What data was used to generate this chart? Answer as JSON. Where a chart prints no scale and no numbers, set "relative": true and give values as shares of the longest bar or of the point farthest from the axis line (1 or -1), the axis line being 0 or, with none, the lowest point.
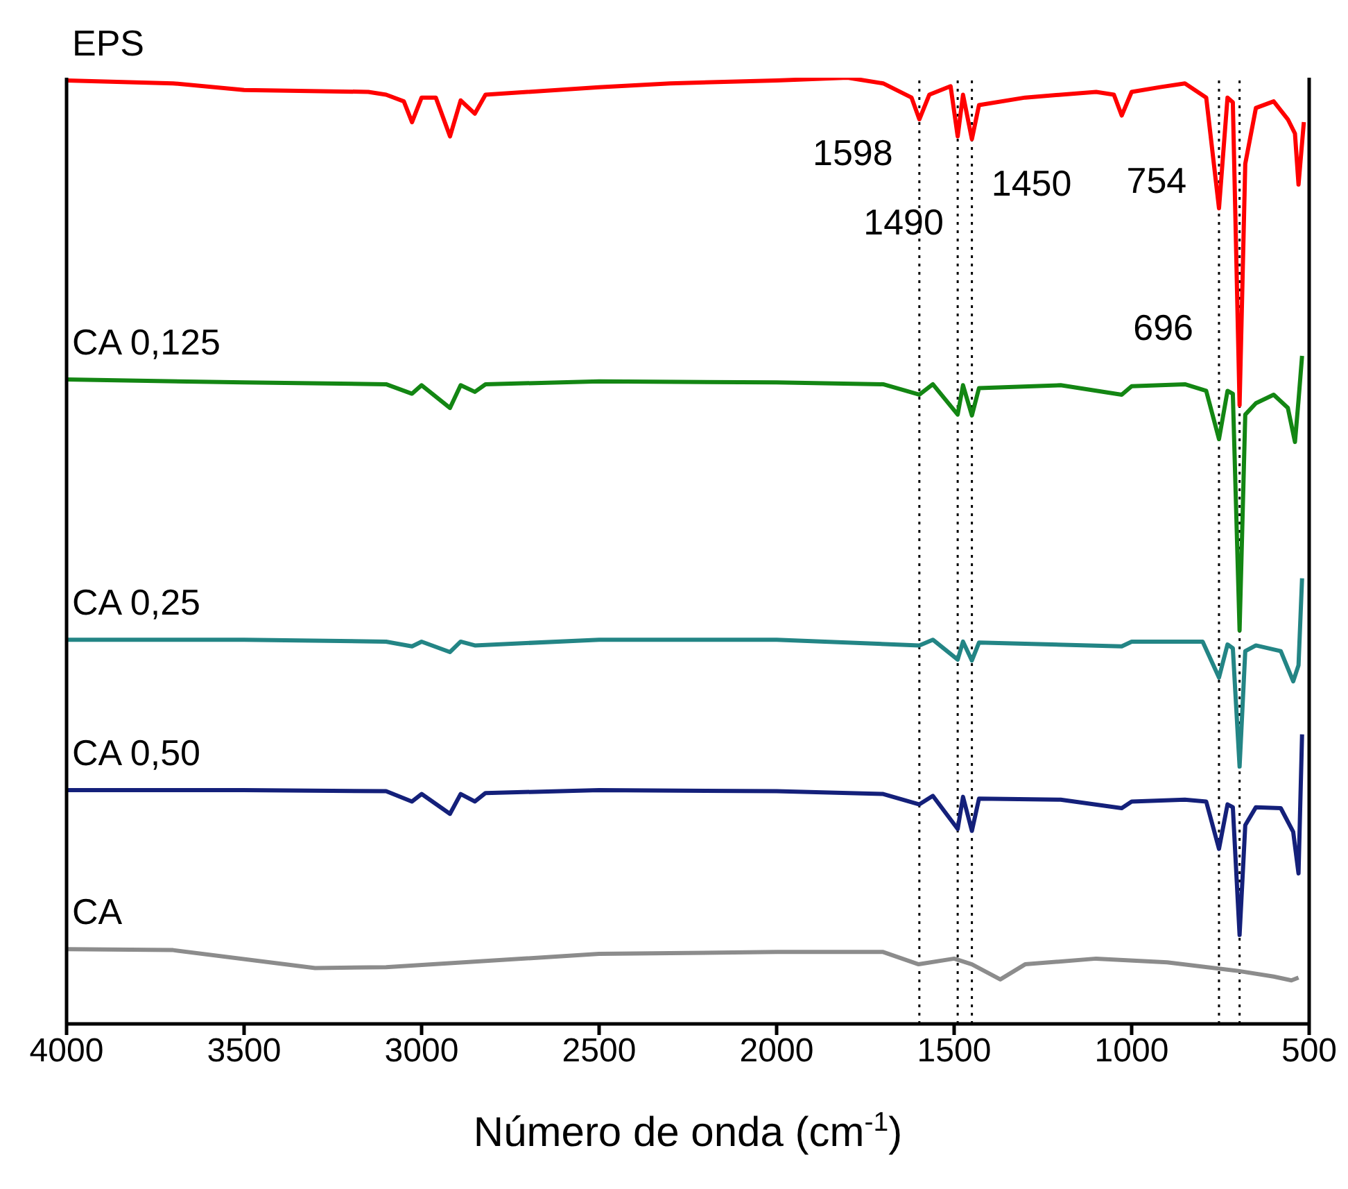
{
  "chart_data": {
    "type": "line",
    "relative": true,
    "xlabel": "Número de onda (cm$^{-1}$)",
    "xlim": [
      4000,
      500
    ],
    "xticks": [
      4000,
      3500,
      3000,
      2500,
      2000,
      1500,
      1000,
      500
    ],
    "series": [
      {
        "name": "EPS",
        "color": "#ff0000",
        "x": [
          4000,
          3700,
          3500,
          3150,
          3100,
          3050,
          3027,
          3000,
          2960,
          2920,
          2890,
          2850,
          2820,
          2500,
          2300,
          2000,
          1800,
          1700,
          1620,
          1598,
          1570,
          1510,
          1490,
          1475,
          1450,
          1430,
          1300,
          1100,
          1050,
          1028,
          1000,
          920,
          850,
          790,
          754,
          730,
          715,
          696,
          680,
          650,
          600,
          560,
          540,
          530,
          515
        ],
        "values": [
          0.997,
          0.994,
          0.987,
          0.985,
          0.982,
          0.975,
          0.953,
          0.979,
          0.979,
          0.938,
          0.976,
          0.962,
          0.982,
          0.99,
          0.994,
          0.997,
          1.0,
          0.994,
          0.979,
          0.956,
          0.982,
          0.991,
          0.938,
          0.982,
          0.935,
          0.971,
          0.979,
          0.985,
          0.982,
          0.96,
          0.985,
          0.99,
          0.994,
          0.979,
          0.862,
          0.979,
          0.974,
          0.654,
          0.909,
          0.968,
          0.975,
          0.956,
          0.941,
          0.887,
          0.953
        ]
      },
      {
        "name": "CA 0,125",
        "color": "#138613",
        "x": [
          4000,
          3500,
          3100,
          3027,
          3000,
          2920,
          2890,
          2850,
          2820,
          2500,
          2000,
          1700,
          1598,
          1560,
          1490,
          1475,
          1450,
          1430,
          1200,
          1028,
          1000,
          850,
          790,
          754,
          730,
          715,
          696,
          680,
          650,
          600,
          560,
          540,
          530,
          520
        ],
        "values": [
          0.681,
          0.678,
          0.676,
          0.666,
          0.675,
          0.651,
          0.675,
          0.668,
          0.676,
          0.679,
          0.678,
          0.676,
          0.665,
          0.676,
          0.644,
          0.675,
          0.643,
          0.672,
          0.675,
          0.665,
          0.674,
          0.676,
          0.669,
          0.618,
          0.669,
          0.666,
          0.416,
          0.644,
          0.656,
          0.665,
          0.651,
          0.615,
          0.659,
          0.706
        ]
      },
      {
        "name": "CA 0,25",
        "color": "#238585",
        "x": [
          4000,
          3500,
          3100,
          3027,
          3000,
          2920,
          2890,
          2850,
          2500,
          2000,
          1598,
          1560,
          1490,
          1475,
          1450,
          1430,
          1028,
          1000,
          800,
          754,
          730,
          715,
          696,
          680,
          650,
          580,
          545,
          530,
          520
        ],
        "values": [
          0.406,
          0.406,
          0.404,
          0.399,
          0.404,
          0.393,
          0.404,
          0.4,
          0.406,
          0.406,
          0.4,
          0.406,
          0.385,
          0.404,
          0.384,
          0.403,
          0.399,
          0.404,
          0.404,
          0.366,
          0.401,
          0.397,
          0.272,
          0.394,
          0.4,
          0.394,
          0.362,
          0.379,
          0.471
        ]
      },
      {
        "name": "CA 0,50",
        "color": "#14207a",
        "x": [
          4000,
          3500,
          3100,
          3027,
          3000,
          2920,
          2890,
          2850,
          2820,
          2500,
          2000,
          1700,
          1598,
          1560,
          1490,
          1475,
          1450,
          1430,
          1200,
          1028,
          1000,
          850,
          790,
          754,
          730,
          715,
          696,
          680,
          650,
          580,
          545,
          530,
          520
        ],
        "values": [
          0.247,
          0.247,
          0.246,
          0.235,
          0.243,
          0.222,
          0.243,
          0.235,
          0.244,
          0.247,
          0.246,
          0.243,
          0.232,
          0.241,
          0.206,
          0.24,
          0.204,
          0.238,
          0.237,
          0.228,
          0.235,
          0.237,
          0.235,
          0.185,
          0.232,
          0.229,
          0.094,
          0.21,
          0.229,
          0.228,
          0.203,
          0.159,
          0.306
        ]
      },
      {
        "name": "CA",
        "color": "#8c8c8c",
        "x": [
          4000,
          3700,
          3300,
          3100,
          2500,
          2000,
          1700,
          1600,
          1500,
          1450,
          1370,
          1300,
          1100,
          900,
          700,
          600,
          550,
          530
        ],
        "values": [
          0.079,
          0.078,
          0.059,
          0.06,
          0.074,
          0.076,
          0.076,
          0.063,
          0.069,
          0.063,
          0.047,
          0.063,
          0.069,
          0.065,
          0.056,
          0.05,
          0.046,
          0.049
        ]
      }
    ],
    "ref_lines": [
      {
        "axis": "x",
        "value": 1598,
        "label": "1598",
        "line_style": "dotted"
      },
      {
        "axis": "x",
        "value": 1490,
        "label": "1490",
        "line_style": "dotted"
      },
      {
        "axis": "x",
        "value": 1450,
        "label": "1450",
        "line_style": "dotted"
      },
      {
        "axis": "x",
        "value": 754,
        "label": "754",
        "line_style": "dotted"
      },
      {
        "axis": "x",
        "value": 696,
        "label": "696",
        "line_style": "dotted"
      }
    ]
  }
}
